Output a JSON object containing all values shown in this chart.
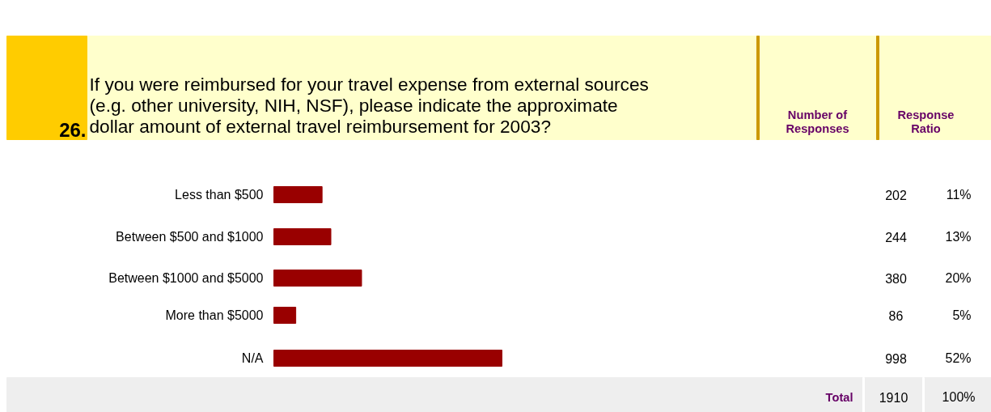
{
  "chart_data": {
    "type": "bar",
    "orientation": "horizontal",
    "title": "If you were reimbursed for your travel expense from external sources (e.g. other university, NIH, NSF), please indicate the approximate dollar amount of external travel reimbursement for 2003?",
    "categories": [
      "Less than $500",
      "Between $500 and $1000",
      "Between $1000 and $5000",
      "More than $5000",
      "N/A"
    ],
    "values": [
      11,
      13,
      20,
      5,
      52
    ],
    "color": "#990000",
    "value_labels": [
      "11%",
      "13%",
      "20%",
      "5%",
      "52%"
    ],
    "annotations": [
      "26.",
      "Number of Responses",
      "Response Ratio",
      "Total",
      "1910",
      "100%",
      "202",
      "244",
      "380",
      "86",
      "998"
    ]
  }
}
